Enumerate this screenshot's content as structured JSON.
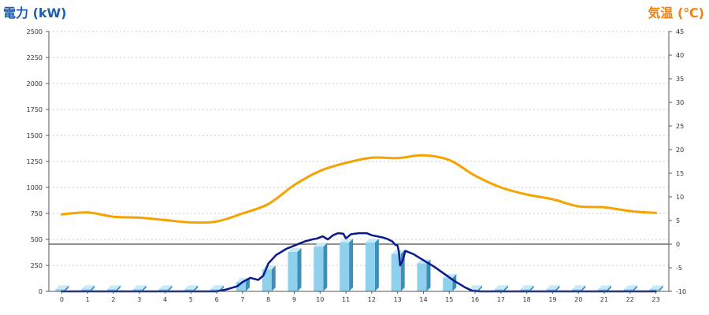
{
  "chart_data": {
    "type": "bar",
    "left_axis_title": "電力 (kW)",
    "right_axis_title": "気温 (℃)",
    "colors": {
      "left_title": "#1a5fb4",
      "right_title": "#f08010",
      "temperature": "#f5a300",
      "power": "#0a1a8c",
      "bar_front": "#8fd0ec",
      "bar_side": "#3d8fb8",
      "bar_top": "#c7eaf8"
    },
    "grid": true,
    "y_left": {
      "min": 0,
      "max": 2500,
      "ticks": [
        "0",
        "250",
        "500",
        "750",
        "1000",
        "1250",
        "1500",
        "1750",
        "2000",
        "2250",
        "2500"
      ]
    },
    "y_right": {
      "min": -10,
      "max": 45,
      "ticks": [
        "-10",
        "-5",
        "0",
        "5",
        "10",
        "15",
        "20",
        "25",
        "30",
        "35",
        "40",
        "45"
      ]
    },
    "x_ticks": [
      "0",
      "1",
      "2",
      "3",
      "4",
      "5",
      "6",
      "7",
      "8",
      "9",
      "10",
      "11",
      "12",
      "13",
      "14",
      "15",
      "16",
      "17",
      "18",
      "19",
      "20",
      "21",
      "22",
      "23"
    ],
    "bars": {
      "name": "hourly",
      "axis": "left",
      "values": [
        20,
        20,
        20,
        20,
        20,
        20,
        20,
        90,
        210,
        380,
        430,
        470,
        470,
        360,
        270,
        130,
        20,
        20,
        20,
        20,
        20,
        20,
        20,
        20
      ]
    },
    "temperature": {
      "axis": "right",
      "x": [
        0,
        1,
        2,
        3,
        4,
        5,
        6,
        7,
        8,
        9,
        10,
        11,
        12,
        13,
        14,
        15,
        16,
        17,
        18,
        19,
        20,
        21,
        22,
        23
      ],
      "y": [
        6.3,
        6.7,
        5.8,
        5.6,
        5.1,
        4.6,
        4.8,
        6.5,
        8.5,
        12.5,
        15.5,
        17.2,
        18.3,
        18.2,
        18.8,
        17.8,
        14.5,
        12.0,
        10.5,
        9.5,
        8.0,
        7.8,
        7.0,
        6.6
      ]
    },
    "power": {
      "axis": "left",
      "x": [
        0,
        6,
        6.4,
        6.8,
        7.0,
        7.3,
        7.6,
        7.8,
        8.0,
        8.3,
        8.7,
        9.0,
        9.4,
        9.7,
        9.9,
        10.1,
        10.3,
        10.5,
        10.7,
        10.9,
        11.0,
        11.2,
        11.5,
        11.8,
        12.0,
        12.2,
        12.4,
        12.6,
        12.8,
        12.9,
        13.0,
        13.05,
        13.1,
        13.2,
        13.3,
        13.6,
        14.0,
        14.4,
        14.8,
        15.2,
        15.6,
        15.9,
        16.2,
        23
      ],
      "y": [
        0,
        0,
        20,
        50,
        90,
        130,
        110,
        150,
        270,
        350,
        410,
        440,
        480,
        500,
        510,
        530,
        500,
        540,
        560,
        555,
        510,
        550,
        560,
        560,
        540,
        530,
        520,
        505,
        480,
        450,
        440,
        380,
        250,
        300,
        390,
        360,
        300,
        240,
        170,
        100,
        40,
        5,
        0,
        0
      ]
    }
  }
}
